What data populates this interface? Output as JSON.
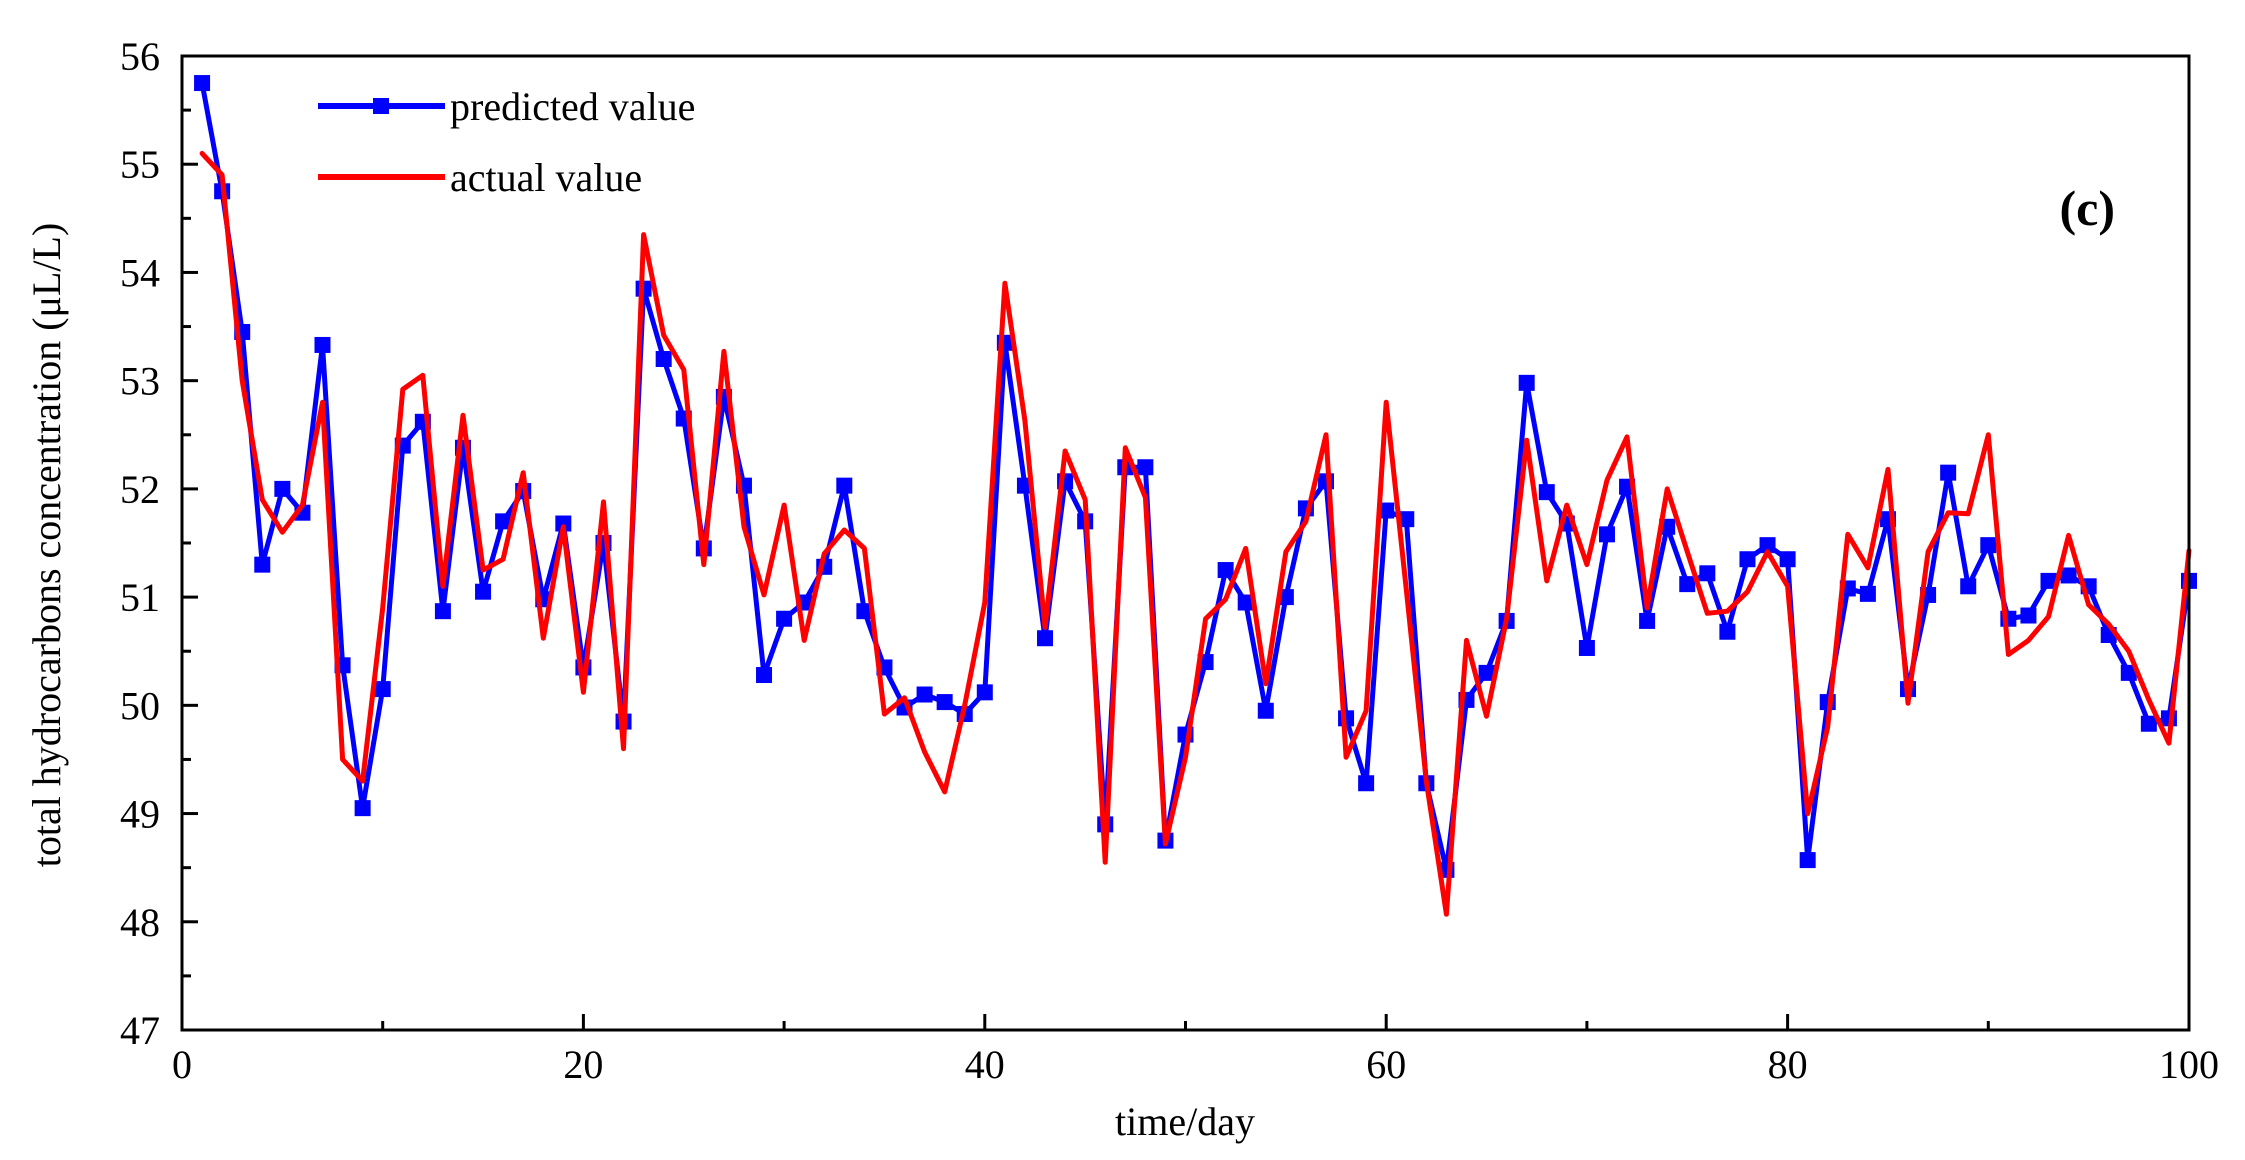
{
  "chart_data": {
    "type": "line",
    "title": "",
    "panel_label": "(c)",
    "xlabel": "time/day",
    "ylabel": "total hydrocarbons concentration (μL/L)",
    "xlim": [
      0,
      100
    ],
    "ylim": [
      47,
      56
    ],
    "x_ticks": [
      0,
      20,
      40,
      60,
      80,
      100
    ],
    "y_ticks": [
      47,
      48,
      49,
      50,
      51,
      52,
      53,
      54,
      55,
      56
    ],
    "grid": false,
    "legend_position": "top-left",
    "x": [
      1,
      2,
      3,
      4,
      5,
      6,
      7,
      8,
      9,
      10,
      11,
      12,
      13,
      14,
      15,
      16,
      17,
      18,
      19,
      20,
      21,
      22,
      23,
      24,
      25,
      26,
      27,
      28,
      29,
      30,
      31,
      32,
      33,
      34,
      35,
      36,
      37,
      38,
      39,
      40,
      41,
      42,
      43,
      44,
      45,
      46,
      47,
      48,
      49,
      50,
      51,
      52,
      53,
      54,
      55,
      56,
      57,
      58,
      59,
      60,
      61,
      62,
      63,
      64,
      65,
      66,
      67,
      68,
      69,
      70,
      71,
      72,
      73,
      74,
      75,
      76,
      77,
      78,
      79,
      80,
      81,
      82,
      83,
      84,
      85,
      86,
      87,
      88,
      89,
      90,
      91,
      92,
      93,
      94,
      95,
      96,
      97,
      98,
      99,
      100
    ],
    "series": [
      {
        "name": "predicted value",
        "color": "#0000ff",
        "marker": "square",
        "values": [
          55.75,
          54.75,
          53.45,
          51.3,
          52.0,
          51.78,
          53.33,
          50.37,
          49.05,
          50.15,
          52.4,
          52.62,
          50.87,
          52.38,
          51.05,
          51.7,
          51.98,
          50.98,
          51.68,
          50.35,
          51.5,
          49.85,
          53.85,
          53.2,
          52.65,
          51.45,
          52.85,
          52.03,
          50.28,
          50.8,
          50.95,
          51.28,
          52.03,
          50.87,
          50.35,
          49.98,
          50.1,
          50.03,
          49.92,
          50.12,
          53.35,
          52.03,
          50.62,
          52.07,
          51.7,
          48.9,
          52.2,
          52.2,
          48.75,
          49.73,
          50.4,
          51.25,
          50.95,
          49.95,
          51.0,
          51.82,
          52.07,
          49.88,
          49.28,
          51.8,
          51.72,
          49.28,
          48.48,
          50.05,
          50.3,
          50.78,
          52.98,
          51.97,
          51.68,
          50.53,
          51.58,
          52.02,
          50.78,
          51.65,
          51.12,
          51.22,
          50.68,
          51.35,
          51.48,
          51.35,
          48.57,
          50.03,
          51.08,
          51.03,
          51.72,
          50.15,
          51.02,
          52.15,
          51.1,
          51.48,
          50.8,
          50.83,
          51.15,
          51.2,
          51.1,
          50.65,
          50.3,
          49.83,
          49.88,
          51.15
        ]
      },
      {
        "name": "actual value",
        "color": "#ff0000",
        "marker": "none",
        "values": [
          55.1,
          54.9,
          53.0,
          51.9,
          51.6,
          51.85,
          52.8,
          49.5,
          49.3,
          50.9,
          52.92,
          53.05,
          51.1,
          52.68,
          51.25,
          51.35,
          52.15,
          50.62,
          51.65,
          50.12,
          51.88,
          49.6,
          54.35,
          53.42,
          53.1,
          51.3,
          53.27,
          51.65,
          51.02,
          51.85,
          50.6,
          51.4,
          51.62,
          51.45,
          49.92,
          50.07,
          49.57,
          49.2,
          50.0,
          50.95,
          53.9,
          52.63,
          50.72,
          52.35,
          51.9,
          48.55,
          52.38,
          51.92,
          48.72,
          49.52,
          50.8,
          50.98,
          51.45,
          50.2,
          51.42,
          51.7,
          52.5,
          49.52,
          49.95,
          52.8,
          51.07,
          49.3,
          48.07,
          50.6,
          49.9,
          50.8,
          52.45,
          51.15,
          51.85,
          51.3,
          52.08,
          52.48,
          50.9,
          52.0,
          51.42,
          50.85,
          50.87,
          51.05,
          51.42,
          51.1,
          49.0,
          49.8,
          51.58,
          51.27,
          52.18,
          50.02,
          51.42,
          51.78,
          51.77,
          52.5,
          50.47,
          50.6,
          50.82,
          51.57,
          50.93,
          50.75,
          50.5,
          50.05,
          49.65,
          51.43
        ]
      }
    ]
  }
}
